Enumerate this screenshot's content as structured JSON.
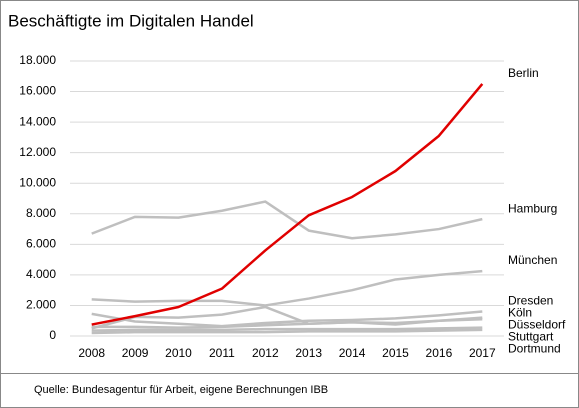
{
  "chart_data": {
    "type": "line",
    "title": "Beschäftigte im Digitalen Handel",
    "source": "Quelle: Bundesagentur für Arbeit, eigene Berechnungen IBB",
    "categories": [
      "2008",
      "2009",
      "2010",
      "2011",
      "2012",
      "2013",
      "2014",
      "2015",
      "2016",
      "2017"
    ],
    "series": [
      {
        "name": "Berlin",
        "color": "#e00000",
        "values": [
          750,
          1300,
          1900,
          3100,
          5600,
          7900,
          9100,
          10800,
          13100,
          16500
        ]
      },
      {
        "name": "Hamburg",
        "color": "#bfbfbf",
        "values": [
          6700,
          7800,
          7750,
          8200,
          8800,
          6900,
          6400,
          6650,
          7000,
          7650
        ]
      },
      {
        "name": "München",
        "color": "#bfbfbf",
        "values": [
          2400,
          2250,
          2300,
          2300,
          2000,
          2450,
          3000,
          3700,
          4000,
          4250
        ]
      },
      {
        "name": "Dresden",
        "color": "#bfbfbf",
        "values": [
          1450,
          950,
          800,
          650,
          850,
          1000,
          1050,
          1150,
          1350,
          1600
        ]
      },
      {
        "name": "Köln",
        "color": "#bfbfbf",
        "values": [
          500,
          1250,
          1200,
          1400,
          1900,
          800,
          900,
          750,
          1000,
          1200
        ]
      },
      {
        "name": "Düsseldorf",
        "color": "#bfbfbf",
        "values": [
          600,
          600,
          550,
          600,
          700,
          800,
          900,
          850,
          1000,
          1100
        ]
      },
      {
        "name": "Stuttgart",
        "color": "#bfbfbf",
        "values": [
          350,
          400,
          400,
          400,
          450,
          450,
          450,
          450,
          500,
          550
        ]
      },
      {
        "name": "Dortmund",
        "color": "#bfbfbf",
        "values": [
          200,
          250,
          250,
          250,
          250,
          300,
          300,
          300,
          350,
          400
        ]
      }
    ],
    "ylim": [
      0,
      18000
    ],
    "yticks": [
      0,
      {
        "value": 2000,
        "label": "2.000"
      },
      {
        "value": 4000,
        "label": "4.000"
      },
      {
        "value": 6000,
        "label": "6.000"
      },
      {
        "value": 8000,
        "label": "8.000"
      },
      {
        "value": 10000,
        "label": "10.000"
      },
      {
        "value": 12000,
        "label": "12.000"
      },
      {
        "value": 14000,
        "label": "14.000"
      },
      {
        "value": 16000,
        "label": "16.000"
      },
      {
        "value": 18000,
        "label": "18.000"
      }
    ],
    "grid": true
  }
}
